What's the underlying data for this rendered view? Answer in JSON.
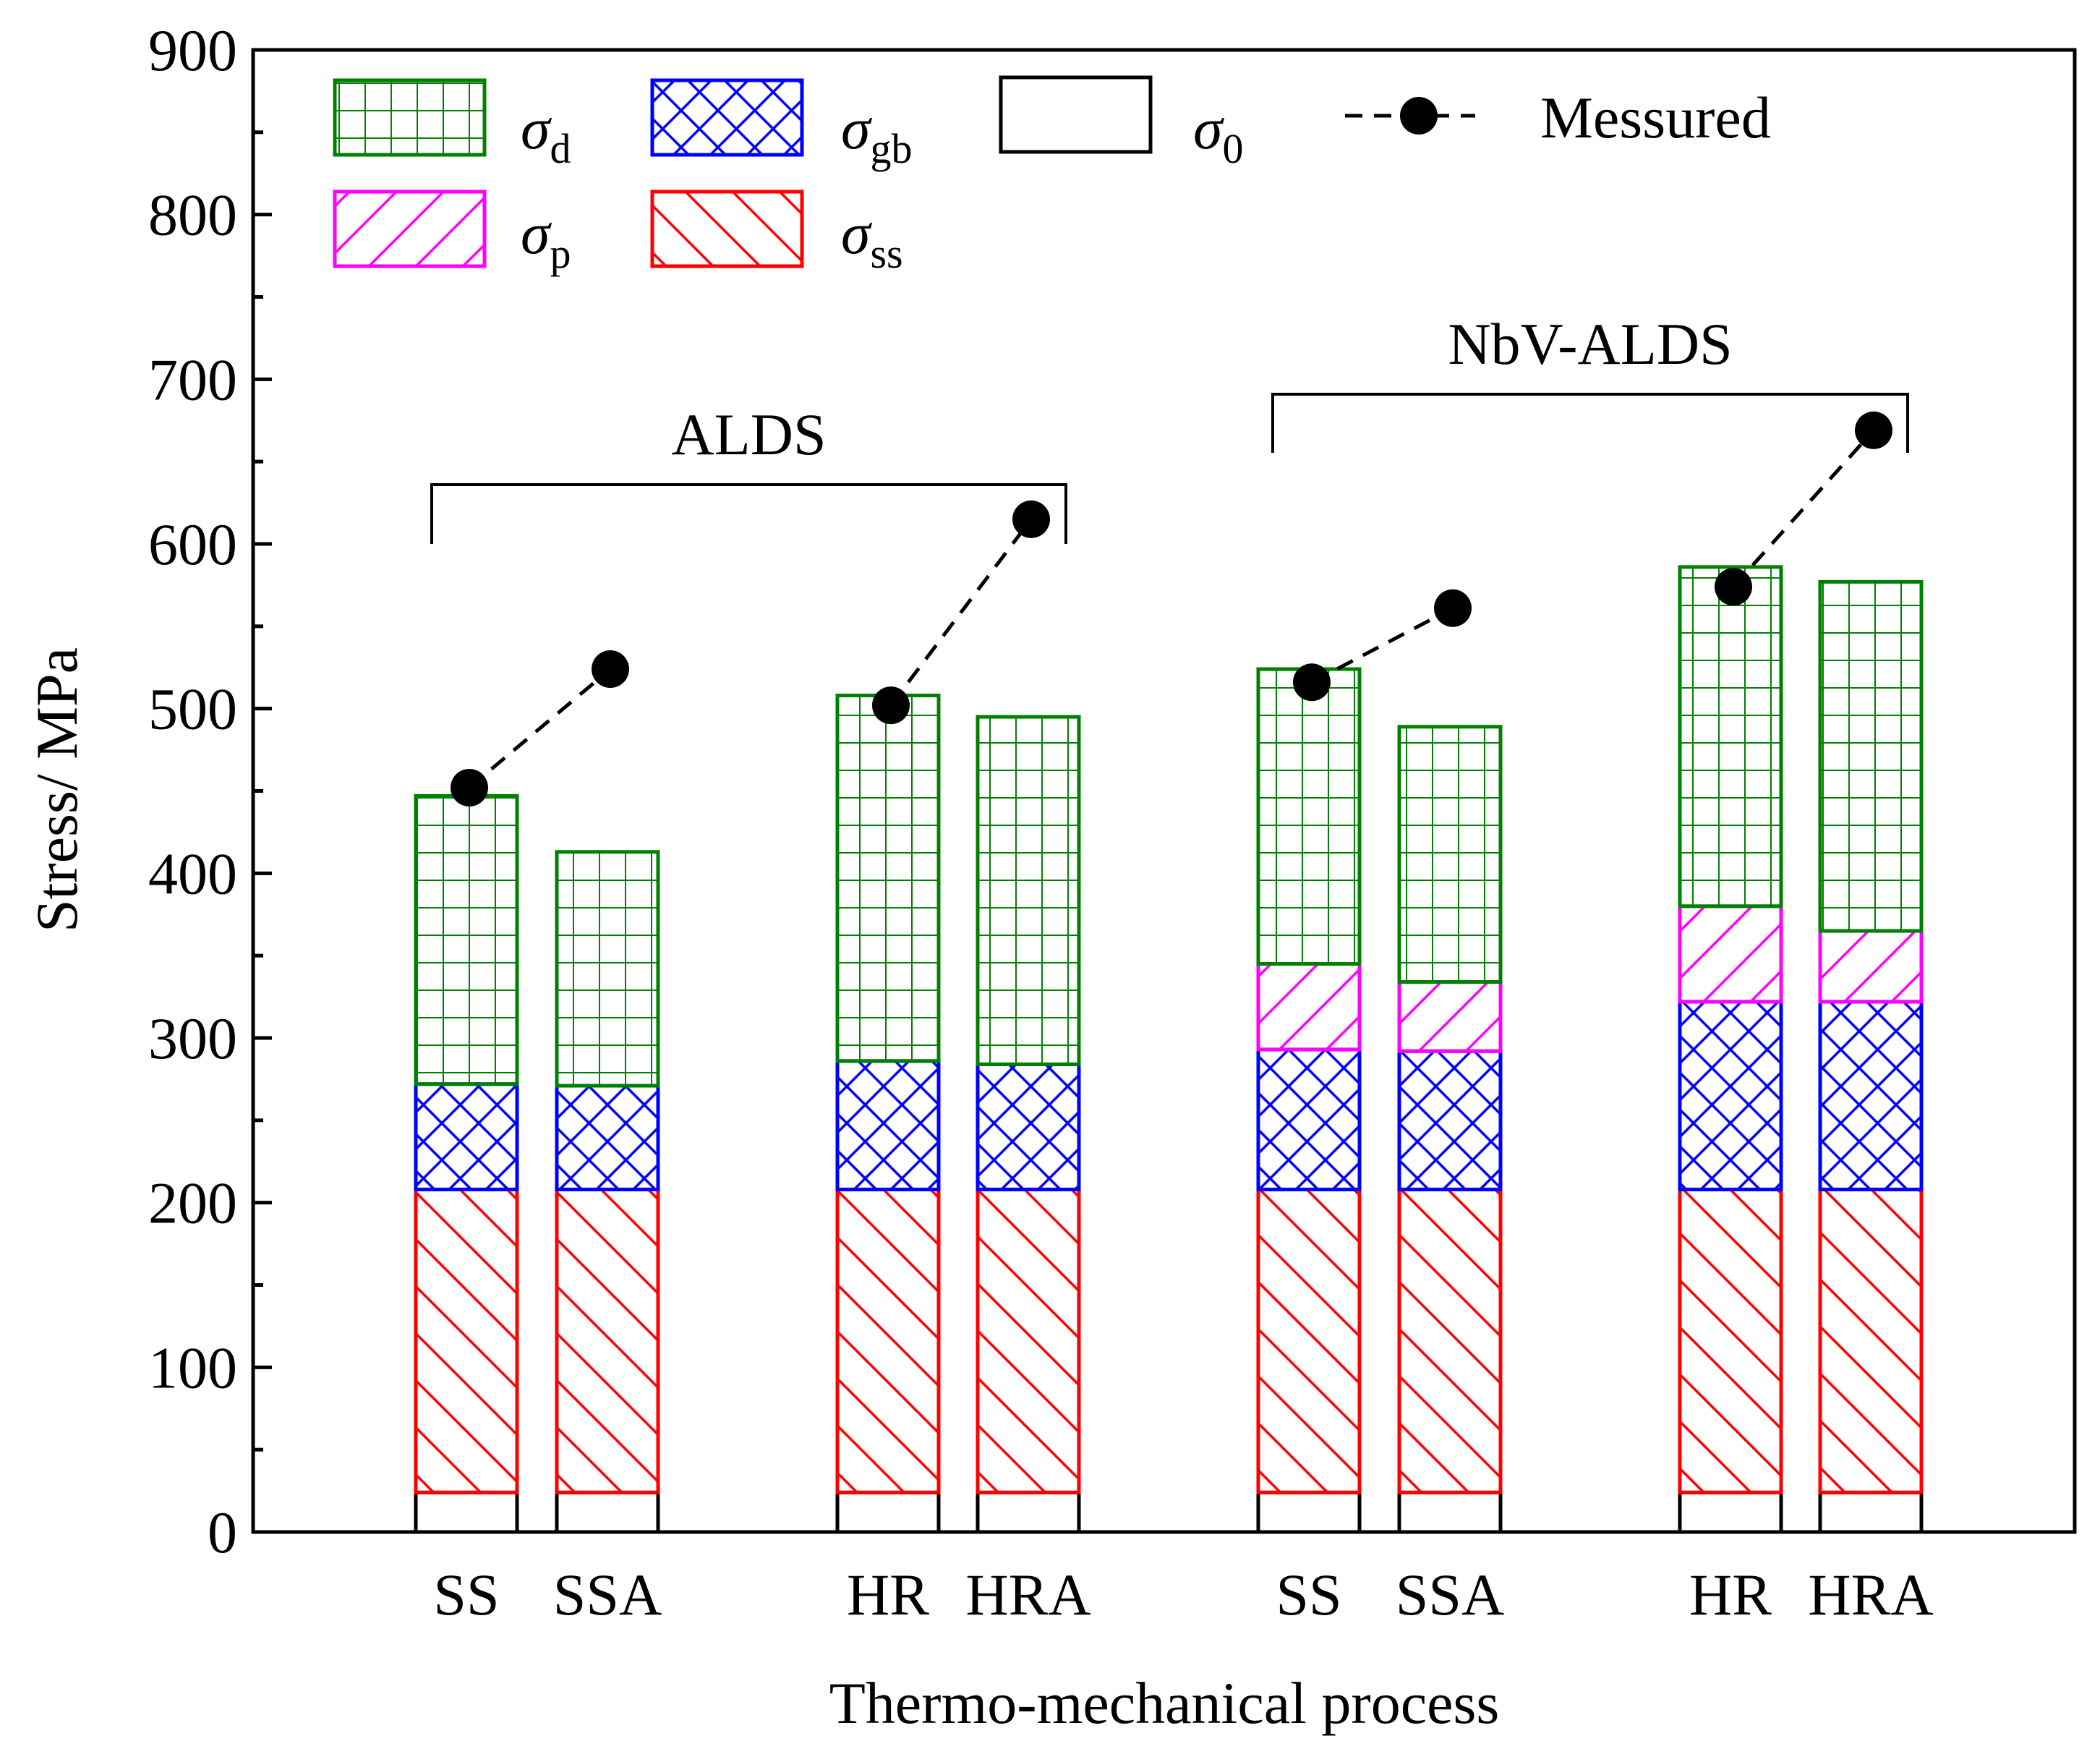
{
  "chart_data": {
    "type": "bar",
    "stacked": true,
    "xlabel": "Thermo-mechanical process",
    "ylabel": "Stress/ MPa",
    "ylim": [
      0,
      900
    ],
    "yticks": [
      "0",
      "100",
      "200",
      "300",
      "400",
      "500",
      "600",
      "700",
      "800",
      "900"
    ],
    "categories": [
      "SS",
      "SSA",
      "HR",
      "HRA",
      "SS",
      "SSA",
      "HR",
      "HRA"
    ],
    "groups": [
      {
        "label": "ALDS",
        "categories": [
          0,
          1,
          2,
          3
        ]
      },
      {
        "label": "NbV-ALDS",
        "categories": [
          4,
          5,
          6,
          7
        ]
      }
    ],
    "series": [
      {
        "key": "s0",
        "name": "σ0",
        "symbol": "σ",
        "sub": "0",
        "color": "#000000",
        "pattern": "none",
        "values": [
          24,
          24,
          24,
          24,
          24,
          24,
          24,
          24
        ]
      },
      {
        "key": "ss",
        "name": "σss",
        "symbol": "σ",
        "sub": "ss",
        "color": "#ff0000",
        "pattern": "backslash",
        "values": [
          184,
          184,
          184,
          184,
          184,
          184,
          184,
          184
        ]
      },
      {
        "key": "gb",
        "name": "σgb",
        "symbol": "σ",
        "sub": "gb",
        "color": "#0000ff",
        "pattern": "crosshatch",
        "values": [
          64,
          63,
          78,
          76,
          85,
          84,
          114,
          114
        ]
      },
      {
        "key": "p",
        "name": "σp",
        "symbol": "σ",
        "sub": "p",
        "color": "#ff00ff",
        "pattern": "slash",
        "values": [
          0,
          0,
          0,
          0,
          52,
          42,
          58,
          43
        ]
      },
      {
        "key": "d",
        "name": "σd",
        "symbol": "σ",
        "sub": "d",
        "color": "#008000",
        "pattern": "grid",
        "values": [
          175,
          142,
          222,
          211,
          179,
          155,
          206,
          212
        ]
      }
    ],
    "measured": {
      "name": "Messured",
      "values": [
        452,
        524,
        502,
        615,
        516,
        561,
        574,
        669
      ]
    },
    "legend_position": "top-left"
  }
}
